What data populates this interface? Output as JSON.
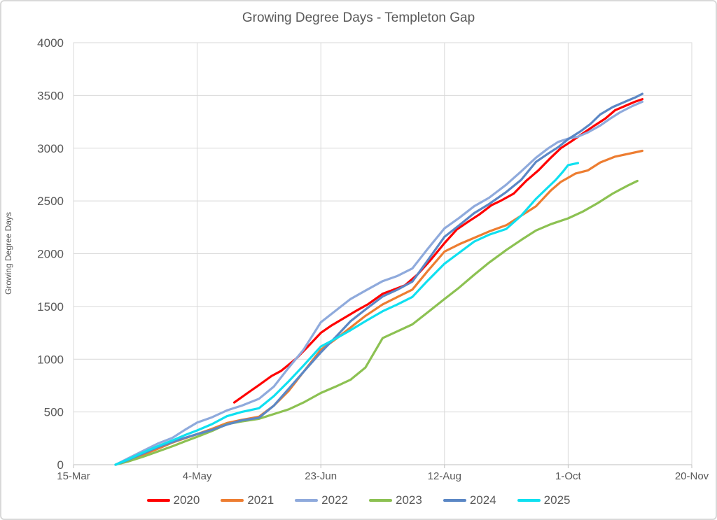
{
  "window": {
    "background_color": "#FFFFFF",
    "frame_border_color": "#D9D9D9"
  },
  "chart_data": {
    "type": "line",
    "title": "Growing Degree Days - Templeton Gap",
    "ylabel": "Growing Degree Days",
    "xlabel": "",
    "ylim": [
      0,
      4000
    ],
    "y_ticks": [
      0,
      500,
      1000,
      1500,
      2000,
      2500,
      3000,
      3500,
      4000
    ],
    "xlim_days": [
      0,
      250
    ],
    "x_ticks": [
      {
        "day": 0,
        "label": "15-Mar"
      },
      {
        "day": 50,
        "label": "4-May"
      },
      {
        "day": 100,
        "label": "23-Jun"
      },
      {
        "day": 150,
        "label": "12-Aug"
      },
      {
        "day": 200,
        "label": "1-Oct"
      },
      {
        "day": 250,
        "label": "20-Nov"
      }
    ],
    "grid": true,
    "grid_color": "#D9D9D9",
    "axis_line_color": "#BFBFBF",
    "text_color": "#595959",
    "legend_position": "bottom",
    "series": [
      {
        "name": "2020",
        "color": "#FF0000",
        "points": [
          [
            65,
            590
          ],
          [
            71,
            690
          ],
          [
            75,
            755
          ],
          [
            80,
            840
          ],
          [
            84,
            890
          ],
          [
            90,
            1005
          ],
          [
            95,
            1125
          ],
          [
            100,
            1250
          ],
          [
            104,
            1315
          ],
          [
            109,
            1385
          ],
          [
            114,
            1455
          ],
          [
            119,
            1520
          ],
          [
            125,
            1620
          ],
          [
            129,
            1655
          ],
          [
            134,
            1700
          ],
          [
            139,
            1800
          ],
          [
            144,
            1930
          ],
          [
            150,
            2100
          ],
          [
            155,
            2230
          ],
          [
            160,
            2310
          ],
          [
            164,
            2370
          ],
          [
            169,
            2460
          ],
          [
            173,
            2505
          ],
          [
            178,
            2570
          ],
          [
            183,
            2690
          ],
          [
            188,
            2790
          ],
          [
            193,
            2910
          ],
          [
            197,
            3000
          ],
          [
            201,
            3060
          ],
          [
            206,
            3140
          ],
          [
            211,
            3220
          ],
          [
            215,
            3280
          ],
          [
            219,
            3360
          ],
          [
            224,
            3410
          ],
          [
            227,
            3440
          ],
          [
            230,
            3465
          ]
        ]
      },
      {
        "name": "2021",
        "color": "#ED7D31",
        "points": [
          [
            17,
            0
          ],
          [
            22,
            40
          ],
          [
            28,
            95
          ],
          [
            34,
            150
          ],
          [
            40,
            210
          ],
          [
            45,
            250
          ],
          [
            50,
            290
          ],
          [
            56,
            340
          ],
          [
            62,
            395
          ],
          [
            68,
            425
          ],
          [
            75,
            455
          ],
          [
            81,
            560
          ],
          [
            87,
            700
          ],
          [
            93,
            880
          ],
          [
            100,
            1090
          ],
          [
            106,
            1190
          ],
          [
            112,
            1300
          ],
          [
            118,
            1410
          ],
          [
            125,
            1520
          ],
          [
            131,
            1590
          ],
          [
            137,
            1660
          ],
          [
            143,
            1830
          ],
          [
            150,
            2020
          ],
          [
            156,
            2090
          ],
          [
            162,
            2150
          ],
          [
            168,
            2210
          ],
          [
            175,
            2270
          ],
          [
            181,
            2360
          ],
          [
            187,
            2450
          ],
          [
            193,
            2600
          ],
          [
            197,
            2680
          ],
          [
            200,
            2720
          ],
          [
            203,
            2760
          ],
          [
            208,
            2790
          ],
          [
            213,
            2865
          ],
          [
            219,
            2920
          ],
          [
            225,
            2950
          ],
          [
            230,
            2975
          ]
        ]
      },
      {
        "name": "2022",
        "color": "#8FAADC",
        "points": [
          [
            17,
            0
          ],
          [
            22,
            60
          ],
          [
            28,
            130
          ],
          [
            34,
            200
          ],
          [
            40,
            255
          ],
          [
            45,
            330
          ],
          [
            50,
            400
          ],
          [
            56,
            450
          ],
          [
            62,
            515
          ],
          [
            68,
            560
          ],
          [
            75,
            625
          ],
          [
            81,
            740
          ],
          [
            87,
            920
          ],
          [
            93,
            1090
          ],
          [
            100,
            1350
          ],
          [
            106,
            1460
          ],
          [
            112,
            1570
          ],
          [
            118,
            1650
          ],
          [
            125,
            1740
          ],
          [
            131,
            1790
          ],
          [
            137,
            1860
          ],
          [
            143,
            2040
          ],
          [
            150,
            2240
          ],
          [
            156,
            2340
          ],
          [
            162,
            2450
          ],
          [
            168,
            2530
          ],
          [
            175,
            2655
          ],
          [
            181,
            2780
          ],
          [
            187,
            2910
          ],
          [
            192,
            3000
          ],
          [
            196,
            3060
          ],
          [
            200,
            3090
          ],
          [
            204,
            3110
          ],
          [
            208,
            3150
          ],
          [
            213,
            3215
          ],
          [
            217,
            3280
          ],
          [
            221,
            3340
          ],
          [
            226,
            3400
          ],
          [
            230,
            3440
          ]
        ]
      },
      {
        "name": "2023",
        "color": "#8CC152",
        "points": [
          [
            17,
            0
          ],
          [
            22,
            30
          ],
          [
            28,
            75
          ],
          [
            34,
            125
          ],
          [
            40,
            175
          ],
          [
            45,
            220
          ],
          [
            50,
            265
          ],
          [
            56,
            320
          ],
          [
            62,
            385
          ],
          [
            68,
            410
          ],
          [
            75,
            435
          ],
          [
            81,
            480
          ],
          [
            87,
            525
          ],
          [
            93,
            590
          ],
          [
            100,
            680
          ],
          [
            106,
            740
          ],
          [
            112,
            805
          ],
          [
            118,
            920
          ],
          [
            125,
            1200
          ],
          [
            131,
            1265
          ],
          [
            137,
            1330
          ],
          [
            143,
            1440
          ],
          [
            150,
            1570
          ],
          [
            156,
            1680
          ],
          [
            162,
            1800
          ],
          [
            168,
            1915
          ],
          [
            175,
            2035
          ],
          [
            181,
            2130
          ],
          [
            187,
            2220
          ],
          [
            193,
            2280
          ],
          [
            200,
            2335
          ],
          [
            206,
            2400
          ],
          [
            212,
            2480
          ],
          [
            218,
            2570
          ],
          [
            224,
            2645
          ],
          [
            228,
            2690
          ]
        ]
      },
      {
        "name": "2024",
        "color": "#5B87C5",
        "points": [
          [
            17,
            0
          ],
          [
            22,
            45
          ],
          [
            28,
            105
          ],
          [
            34,
            165
          ],
          [
            40,
            215
          ],
          [
            45,
            255
          ],
          [
            50,
            290
          ],
          [
            56,
            330
          ],
          [
            62,
            380
          ],
          [
            68,
            420
          ],
          [
            75,
            445
          ],
          [
            81,
            560
          ],
          [
            87,
            720
          ],
          [
            93,
            880
          ],
          [
            100,
            1065
          ],
          [
            106,
            1210
          ],
          [
            112,
            1360
          ],
          [
            118,
            1470
          ],
          [
            125,
            1595
          ],
          [
            131,
            1660
          ],
          [
            137,
            1735
          ],
          [
            143,
            1930
          ],
          [
            150,
            2160
          ],
          [
            156,
            2270
          ],
          [
            162,
            2385
          ],
          [
            168,
            2470
          ],
          [
            175,
            2585
          ],
          [
            181,
            2700
          ],
          [
            187,
            2870
          ],
          [
            192,
            2950
          ],
          [
            196,
            3010
          ],
          [
            200,
            3085
          ],
          [
            205,
            3160
          ],
          [
            209,
            3230
          ],
          [
            213,
            3320
          ],
          [
            218,
            3390
          ],
          [
            223,
            3440
          ],
          [
            227,
            3480
          ],
          [
            230,
            3515
          ]
        ]
      },
      {
        "name": "2025",
        "color": "#0FE0F0",
        "points": [
          [
            17,
            0
          ],
          [
            22,
            50
          ],
          [
            28,
            115
          ],
          [
            34,
            175
          ],
          [
            40,
            230
          ],
          [
            45,
            280
          ],
          [
            50,
            325
          ],
          [
            56,
            385
          ],
          [
            62,
            460
          ],
          [
            68,
            500
          ],
          [
            75,
            535
          ],
          [
            81,
            650
          ],
          [
            87,
            790
          ],
          [
            93,
            940
          ],
          [
            100,
            1120
          ],
          [
            106,
            1195
          ],
          [
            112,
            1275
          ],
          [
            118,
            1360
          ],
          [
            125,
            1455
          ],
          [
            131,
            1520
          ],
          [
            137,
            1590
          ],
          [
            143,
            1740
          ],
          [
            150,
            1905
          ],
          [
            156,
            2010
          ],
          [
            162,
            2115
          ],
          [
            168,
            2180
          ],
          [
            175,
            2235
          ],
          [
            181,
            2360
          ],
          [
            187,
            2520
          ],
          [
            191,
            2610
          ],
          [
            195,
            2700
          ],
          [
            198,
            2780
          ],
          [
            200,
            2840
          ],
          [
            204,
            2860
          ]
        ]
      }
    ]
  }
}
